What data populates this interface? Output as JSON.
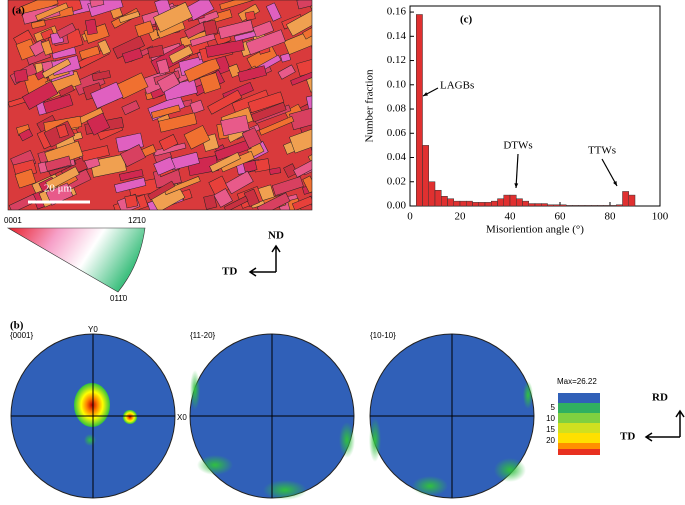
{
  "panel_a": {
    "label": "(a)",
    "scale_bar": "20 μm",
    "ipf_labels": [
      "0001",
      "12̄10",
      "011̄0"
    ],
    "axes": [
      "ND",
      "TD"
    ]
  },
  "panel_b": {
    "label": "(b)",
    "pole_figures": [
      "{0001}",
      "{11-20}",
      "{10-10}"
    ],
    "axis_labels": [
      "Y0",
      "X0"
    ],
    "legend_max": "Max=26.22",
    "legend_levels": [
      5,
      10,
      15,
      20
    ],
    "axes": [
      "RD",
      "TD"
    ]
  },
  "chart_data": {
    "type": "histogram",
    "title": "(c)",
    "xlabel": "Misoriention angle (°)",
    "ylabel": "Number fraction",
    "bins": [
      2.5,
      5,
      7.5,
      10,
      12.5,
      15,
      17.5,
      20,
      22.5,
      25,
      27.5,
      30,
      32.5,
      35,
      37.5,
      40,
      42.5,
      45,
      47.5,
      50,
      52.5,
      55,
      57.5,
      60,
      62.5,
      65,
      67.5,
      70,
      72.5,
      75,
      77.5,
      80,
      82.5,
      85,
      87.5,
      90
    ],
    "values": [
      0.158,
      0.05,
      0.02,
      0.013,
      0.008,
      0.006,
      0.004,
      0.004,
      0.004,
      0.003,
      0.003,
      0.003,
      0.004,
      0.006,
      0.009,
      0.009,
      0.006,
      0.004,
      0.002,
      0.002,
      0.002,
      0.001,
      0.001,
      0.001,
      0.0005,
      0.0005,
      0.0005,
      0.0005,
      0.0005,
      0.0005,
      0.0005,
      0.0005,
      0.001,
      0.012,
      0.009
    ],
    "color": "#e03030",
    "xlim": [
      0,
      100
    ],
    "xticks": [
      0,
      20,
      40,
      60,
      80,
      100
    ],
    "ylim": [
      0,
      0.165
    ],
    "yticks": [
      {
        "value": 0,
        "label": "0.00"
      },
      0.02,
      0.04,
      0.06,
      0.08,
      {
        "value": 0.1,
        "label": "0.10"
      },
      0.12,
      0.14,
      0.16
    ],
    "annotations": [
      "LAGBs",
      "DTWs",
      "TTWs"
    ]
  }
}
